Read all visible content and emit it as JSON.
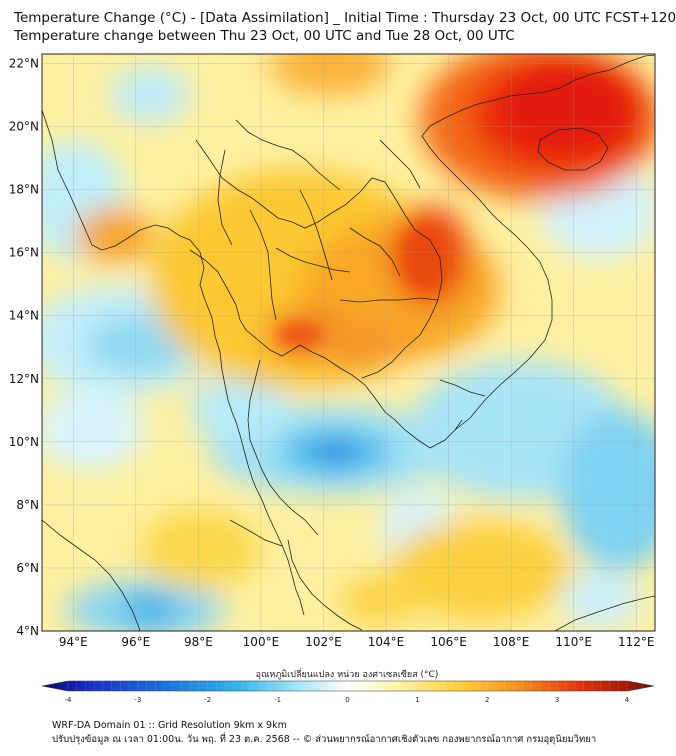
{
  "title": {
    "line1": "Temperature Change (°C) - [Data Assimilation] _ Initial Time : Thursday 23 Oct, 00 UTC FCST+120",
    "line2": "Temperature change between Thu 23 Oct, 00 UTC and Tue 28 Oct, 00 UTC"
  },
  "map": {
    "lat_labels": [
      "22°N",
      "20°N",
      "18°N",
      "16°N",
      "14°N",
      "12°N",
      "10°N",
      "8°N",
      "6°N",
      "4°N"
    ],
    "lon_labels": [
      "94°E",
      "96°E",
      "98°E",
      "100°E",
      "102°E",
      "104°E",
      "106°E",
      "108°E",
      "110°E",
      "112°E"
    ],
    "lat_range": [
      4,
      22.3
    ],
    "lon_range": [
      93,
      112.6
    ],
    "field_description_colors": {
      "warm_strong": "#e81a08",
      "warm_mid": "#f67a12",
      "warm_light": "#fcd63a",
      "neutral": "#fffbe3",
      "cool_light": "#b6ecf8",
      "cool_mid": "#2fbde8",
      "cool_strong": "#1b78db"
    }
  },
  "colorbar": {
    "label": "อุณหภูมิเปลี่ยนแปลง หน่วย องศาเซลเซียส (°C)",
    "ticks": [
      "-4",
      "-3",
      "-2",
      "-1",
      "0",
      "1",
      "2",
      "3",
      "4"
    ],
    "range": [
      -4,
      4
    ]
  },
  "footer": {
    "line1": "WRF-DA Domain 01 :: Grid Resolution 9km x 9km",
    "line2": "ปรับปรุงข้อมูล ณ เวลา 01:00น. วัน พฤ. ที่ 23 ต.ค. 2568 -- © ส่วนพยากรณ์อากาศเชิงตัวเลข กองพยากรณ์อากาศ กรมอุตุนิยมวิทยา"
  }
}
